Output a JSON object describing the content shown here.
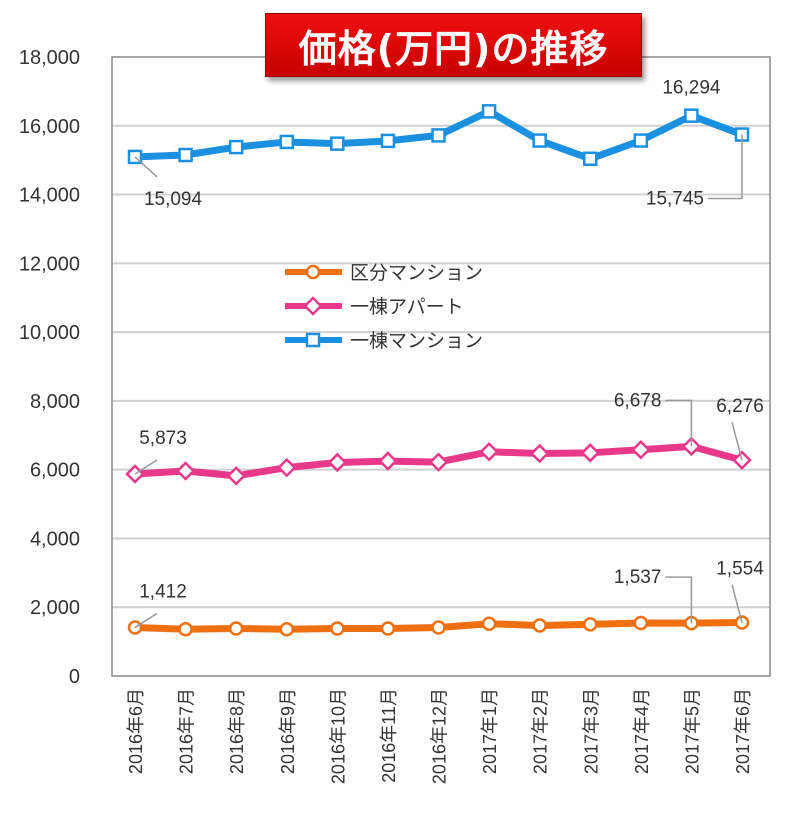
{
  "chart_data": {
    "type": "line",
    "title": "価格(万円)の推移",
    "categories": [
      "2016年6月",
      "2016年7月",
      "2016年8月",
      "2016年9月",
      "2016年10月",
      "2016年11月",
      "2016年12月",
      "2017年1月",
      "2017年2月",
      "2017年3月",
      "2017年4月",
      "2017年5月",
      "2017年6月"
    ],
    "ylim": [
      0,
      18000
    ],
    "yticks": [
      "0",
      "2,000",
      "4,000",
      "6,000",
      "8,000",
      "10,000",
      "12,000",
      "14,000",
      "16,000",
      "18,000"
    ],
    "grid": true,
    "legend_position": "center",
    "series": [
      {
        "name": "区分マンション",
        "color": "#f07010",
        "marker": "circle",
        "values": [
          1412,
          1360,
          1380,
          1360,
          1380,
          1380,
          1410,
          1520,
          1470,
          1500,
          1540,
          1537,
          1554
        ],
        "labels": [
          {
            "index": 0,
            "text": "1,412"
          },
          {
            "index": 11,
            "text": "1,537"
          },
          {
            "index": 12,
            "text": "1,554"
          }
        ]
      },
      {
        "name": "一棟アパート",
        "color": "#e8388a",
        "marker": "diamond",
        "values": [
          5873,
          5960,
          5820,
          6060,
          6210,
          6250,
          6220,
          6520,
          6470,
          6490,
          6580,
          6678,
          6276
        ],
        "labels": [
          {
            "index": 0,
            "text": "5,873"
          },
          {
            "index": 11,
            "text": "6,678"
          },
          {
            "index": 12,
            "text": "6,276"
          }
        ]
      },
      {
        "name": "一棟マンション",
        "color": "#1b90e0",
        "marker": "square",
        "values": [
          15094,
          15150,
          15380,
          15530,
          15480,
          15560,
          15720,
          16420,
          15570,
          15040,
          15570,
          16294,
          15745
        ],
        "labels": [
          {
            "index": 0,
            "text": "15,094"
          },
          {
            "index": 11,
            "text": "16,294"
          },
          {
            "index": 12,
            "text": "15,745"
          }
        ]
      }
    ]
  }
}
